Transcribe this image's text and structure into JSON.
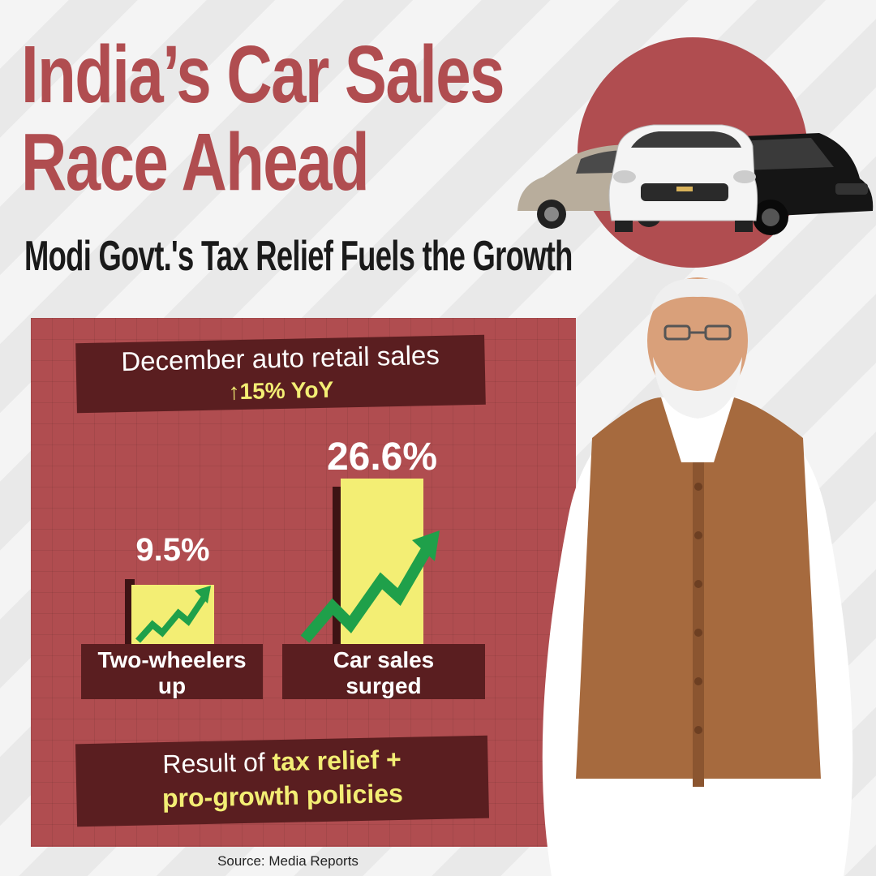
{
  "header": {
    "title_line1": "India’s Car Sales",
    "title_line2": "Race Ahead",
    "subtitle": "Modi Govt.'s Tax Relief Fuels the Growth"
  },
  "headline_box": {
    "line1": "December auto retail sales",
    "line2": "↑15% YoY"
  },
  "bottom_box": {
    "prefix": "Result of ",
    "highlight_line1": "tax relief +",
    "highlight_line2": "pro-growth policies"
  },
  "source": "Source: Media Reports",
  "chart_data": {
    "type": "bar",
    "categories": [
      "Two-wheelers up",
      "Car sales surged"
    ],
    "values": [
      9.5,
      26.6
    ],
    "value_labels": [
      "9.5%",
      "26.6%"
    ],
    "category_lines": [
      [
        "Two-wheelers",
        "up"
      ],
      [
        "Car sales",
        "surged"
      ]
    ],
    "unit": "%",
    "ylim": [
      0,
      26.6
    ],
    "grid": false,
    "title": "",
    "xlabel": "",
    "ylabel": ""
  },
  "colors": {
    "brand_red": "#b04d50",
    "dark_box": "#5a1e20",
    "bar_yellow": "#f3ee74",
    "arrow_green": "#1fa04a"
  },
  "icons": [
    "up-arrow-icon",
    "growth-arrow-icon",
    "cars-illustration",
    "person-photo"
  ]
}
